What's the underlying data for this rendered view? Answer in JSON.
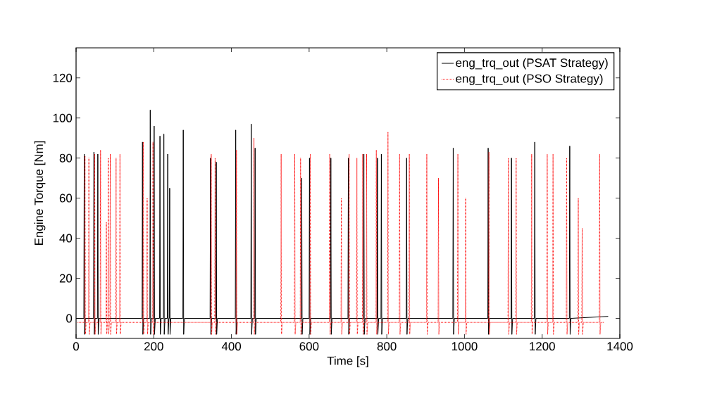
{
  "chart_data": {
    "type": "line",
    "xlabel": "Time [s]",
    "ylabel": "Engine Torque [Nm]",
    "xlim": [
      0,
      1400
    ],
    "ylim": [
      -10,
      135
    ],
    "xticks": [
      0,
      200,
      400,
      600,
      800,
      1000,
      1200,
      1400
    ],
    "yticks": [
      0,
      20,
      40,
      60,
      80,
      100,
      120
    ],
    "legend": "top right",
    "marker": "none",
    "series": [
      {
        "name": "eng_trq_out (PSAT Strategy)",
        "color": "#000000",
        "line_style": "solid",
        "x": [
          0,
          20,
          21,
          22,
          24,
          45,
          46,
          47,
          49,
          55,
          56,
          57,
          59,
          170,
          171,
          172,
          174,
          190,
          191,
          192,
          194,
          200,
          201,
          202,
          204,
          215,
          216,
          217,
          219,
          225,
          226,
          227,
          229,
          235,
          236,
          237,
          239,
          240,
          241,
          242,
          244,
          275,
          276,
          277,
          279,
          345,
          346,
          347,
          349,
          360,
          361,
          362,
          364,
          410,
          411,
          412,
          414,
          450,
          451,
          452,
          454,
          460,
          461,
          462,
          464,
          580,
          581,
          582,
          584,
          600,
          601,
          602,
          604,
          655,
          656,
          657,
          659,
          700,
          701,
          702,
          704,
          740,
          741,
          742,
          744,
          775,
          776,
          777,
          779,
          785,
          786,
          787,
          789,
          850,
          851,
          852,
          854,
          970,
          971,
          972,
          974,
          1060,
          1061,
          1062,
          1064,
          1120,
          1121,
          1122,
          1124,
          1180,
          1181,
          1182,
          1184,
          1270,
          1271,
          1272,
          1274,
          1370
        ],
        "values": [
          0,
          0,
          82,
          -8,
          0,
          0,
          83,
          -8,
          0,
          0,
          82,
          -8,
          0,
          0,
          88,
          -8,
          0,
          0,
          104,
          -8,
          0,
          0,
          96,
          -8,
          0,
          0,
          91,
          -8,
          0,
          0,
          92,
          -8,
          0,
          0,
          82,
          -8,
          0,
          0,
          65,
          -8,
          0,
          0,
          94,
          -8,
          0,
          0,
          80,
          -8,
          0,
          0,
          78,
          -8,
          0,
          0,
          94,
          -8,
          0,
          0,
          97,
          -8,
          0,
          0,
          85,
          -8,
          0,
          0,
          70,
          -8,
          0,
          0,
          80,
          -8,
          0,
          0,
          80,
          -8,
          0,
          0,
          80,
          -8,
          0,
          0,
          82,
          -8,
          0,
          0,
          80,
          -8,
          0,
          0,
          82,
          -8,
          0,
          0,
          80,
          -8,
          0,
          0,
          85,
          -8,
          0,
          0,
          85,
          -8,
          0,
          0,
          80,
          -8,
          0,
          0,
          88,
          -8,
          0,
          0,
          86,
          -8,
          0,
          1
        ]
      },
      {
        "name": "eng_trq_out (PSO Strategy)",
        "color": "#ff0000",
        "line_style": "dotted",
        "x": [
          4,
          22,
          23,
          24,
          26,
          32,
          33,
          34,
          36,
          47,
          48,
          49,
          51,
          62,
          63,
          64,
          66,
          77,
          78,
          79,
          81,
          82,
          83,
          84,
          86,
          87,
          88,
          89,
          91,
          102,
          103,
          104,
          106,
          112,
          113,
          114,
          116,
          172,
          173,
          174,
          176,
          182,
          183,
          184,
          186,
          197,
          198,
          199,
          201,
          347,
          348,
          349,
          351,
          357,
          358,
          359,
          361,
          412,
          413,
          414,
          416,
          457,
          458,
          459,
          461,
          527,
          528,
          529,
          531,
          562,
          563,
          564,
          566,
          577,
          578,
          579,
          581,
          602,
          603,
          604,
          606,
          652,
          653,
          654,
          656,
          682,
          683,
          684,
          686,
          702,
          703,
          704,
          706,
          722,
          723,
          724,
          726,
          737,
          738,
          739,
          741,
          747,
          748,
          749,
          751,
          772,
          773,
          774,
          776,
          802,
          803,
          804,
          806,
          832,
          833,
          834,
          836,
          857,
          858,
          859,
          861,
          902,
          903,
          904,
          906,
          932,
          933,
          934,
          936,
          982,
          983,
          984,
          986,
          1002,
          1003,
          1004,
          1006,
          1062,
          1063,
          1064,
          1066,
          1112,
          1113,
          1114,
          1116,
          1132,
          1133,
          1134,
          1136,
          1172,
          1173,
          1174,
          1176,
          1212,
          1213,
          1214,
          1216,
          1227,
          1228,
          1229,
          1231,
          1262,
          1263,
          1264,
          1266,
          1292,
          1293,
          1294,
          1296,
          1302,
          1303,
          1304,
          1306,
          1347,
          1348,
          1349,
          1351,
          1360
        ],
        "values": [
          -2,
          -2,
          81,
          -8,
          -2,
          -2,
          80,
          -8,
          -2,
          -2,
          82,
          -8,
          -2,
          -2,
          84,
          -8,
          -2,
          -2,
          48,
          -8,
          -2,
          -2,
          80,
          -8,
          -2,
          -2,
          82,
          -8,
          -2,
          -2,
          80,
          -8,
          -2,
          -2,
          82,
          -8,
          -2,
          -2,
          88,
          -8,
          -2,
          -2,
          60,
          -8,
          -2,
          -2,
          88,
          -8,
          -2,
          -2,
          82,
          -8,
          -2,
          -2,
          80,
          -8,
          -2,
          -2,
          84,
          -8,
          -2,
          -2,
          90,
          -8,
          -2,
          -2,
          82,
          -8,
          -2,
          -2,
          82,
          -8,
          -2,
          -2,
          80,
          -8,
          -2,
          -2,
          82,
          -8,
          -2,
          -2,
          82,
          -8,
          -2,
          -2,
          60,
          -8,
          -2,
          -2,
          82,
          -8,
          -2,
          -2,
          80,
          -8,
          -2,
          -2,
          82,
          -8,
          -2,
          -2,
          82,
          -8,
          -2,
          -2,
          84,
          -8,
          -2,
          -2,
          93,
          -8,
          -2,
          -2,
          82,
          -8,
          -2,
          -2,
          82,
          -8,
          -2,
          -2,
          82,
          -8,
          -2,
          -2,
          70,
          -8,
          -2,
          -2,
          82,
          -8,
          -2,
          -2,
          60,
          -8,
          -2,
          -2,
          83,
          -8,
          -2,
          -2,
          80,
          -8,
          -2,
          -2,
          80,
          -8,
          -2,
          -2,
          82,
          -8,
          -2,
          -2,
          82,
          -8,
          -2,
          -2,
          82,
          -8,
          -2,
          -2,
          80,
          -8,
          -2,
          -2,
          60,
          -8,
          -2,
          -2,
          45,
          -8,
          -2,
          -2,
          82,
          -8,
          -2,
          -2
        ]
      }
    ]
  }
}
